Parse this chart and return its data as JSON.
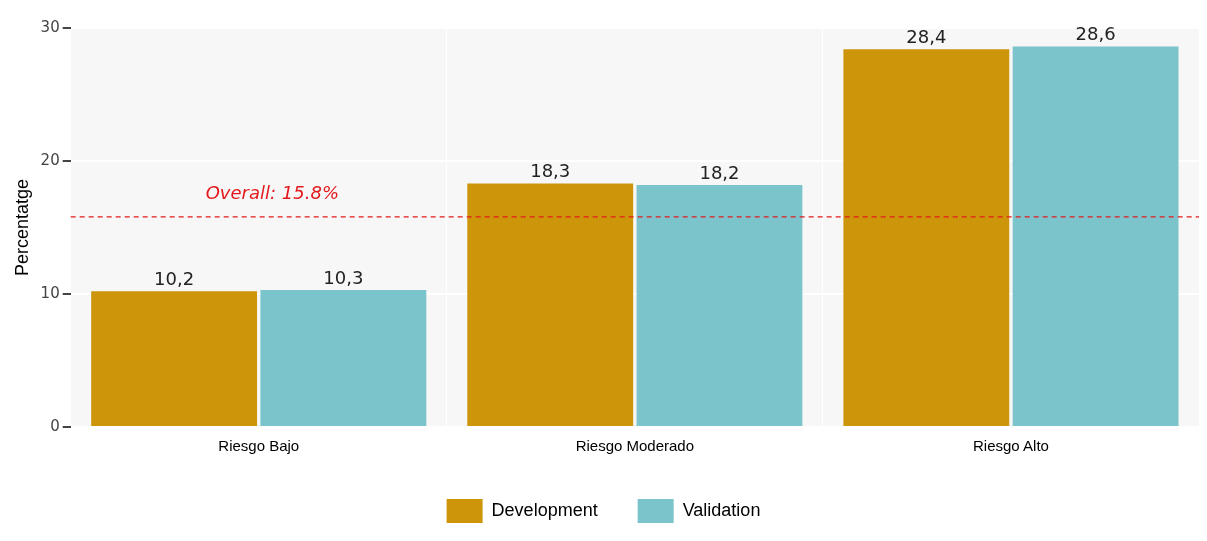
{
  "chart_data": {
    "type": "bar",
    "ylabel": "Percentatge",
    "categories": [
      "Riesgo Bajo",
      "Riesgo Moderado",
      "Riesgo Alto"
    ],
    "series": [
      {
        "name": "Development",
        "color": "#cc950a",
        "values": [
          10.2,
          18.3,
          28.4
        ],
        "value_labels": [
          "10,2",
          "18,3",
          "28,4"
        ]
      },
      {
        "name": "Validation",
        "color": "#7bc4cc",
        "values": [
          10.3,
          18.2,
          28.6
        ],
        "value_labels": [
          "10,3",
          "18,2",
          "28,6"
        ]
      }
    ],
    "ylim": [
      0,
      30
    ],
    "yticks": [
      0,
      10,
      20,
      30
    ],
    "grid": true,
    "legend": "bottom",
    "ref_lines": [
      {
        "axis": "y",
        "value": 15.8,
        "label": "Overall: 15.8%",
        "color": "#e31a1c",
        "line_style": "dashed"
      }
    ]
  }
}
